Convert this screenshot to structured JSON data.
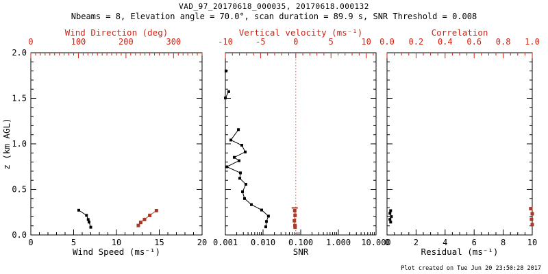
{
  "title": "VAD_97_20170618_000035, 20170618.000132",
  "subtitle": "Nbeams = 8, Elevation angle = 70.0°, scan duration = 89.9 s, SNR Threshold = 0.008",
  "footer": "Plot created on Tue Jun 20 23:50:28 2017",
  "colors": {
    "background": "#ffffff",
    "axis_black": "#000000",
    "axis_red": "#d41f10",
    "data_black": "#000000",
    "data_red": "#a93a28",
    "ref_line_red": "#dd4545"
  },
  "chart_data": [
    {
      "name": "panel-wind-speed-direction",
      "type": "scatter",
      "y_axis": {
        "label": "z (km AGL)",
        "lim": [
          0,
          2
        ],
        "ticks": [
          0,
          0.5,
          1,
          1.5,
          2
        ],
        "tick_labels": [
          "0.0",
          "0.5",
          "1.0",
          "1.5",
          "2.0"
        ],
        "minor_step": 0.1,
        "show_labels": true
      },
      "bottom_axis": {
        "label": "Wind Speed (ms⁻¹)",
        "scale": "linear",
        "lim": [
          0,
          20
        ],
        "ticks": [
          0,
          5,
          10,
          15,
          20
        ],
        "tick_labels": [
          "0",
          "5",
          "10",
          "15",
          "20"
        ],
        "minor_step": 1,
        "color": "black"
      },
      "top_axis": {
        "label": "Wind Direction (deg)",
        "scale": "linear",
        "lim": [
          0,
          360
        ],
        "ticks": [
          0,
          100,
          200,
          300
        ],
        "tick_labels": [
          "0",
          "100",
          "200",
          "300"
        ],
        "minor_step": 10,
        "color": "red"
      },
      "series": [
        {
          "name": "wind-speed",
          "axis": "bottom",
          "color": "black",
          "line": true,
          "points": [
            [
              5.6,
              0.272
            ],
            [
              6.5,
              0.215
            ],
            [
              6.7,
              0.17
            ],
            [
              6.8,
              0.141
            ],
            [
              7.0,
              0.085
            ]
          ]
        },
        {
          "name": "wind-direction",
          "axis": "top",
          "color": "red",
          "line": true,
          "points": [
            [
              226,
              0.104
            ],
            [
              231,
              0.138
            ],
            [
              239,
              0.17
            ],
            [
              250,
              0.215
            ],
            [
              264,
              0.267
            ]
          ]
        }
      ]
    },
    {
      "name": "panel-snr-vertical-velocity",
      "type": "scatter",
      "y_axis": {
        "label": "",
        "lim": [
          0,
          2
        ],
        "ticks": [
          0,
          0.5,
          1,
          1.5,
          2
        ],
        "tick_labels": [
          "0.0",
          "0.5",
          "1.0",
          "1.5",
          "2.0"
        ],
        "minor_step": 0.1,
        "show_labels": false
      },
      "bottom_axis": {
        "label": "SNR",
        "scale": "log",
        "lim": [
          0.001,
          10
        ],
        "ticks": [
          0.001,
          0.01,
          0.1,
          1,
          10
        ],
        "tick_labels": [
          "0.001",
          "0.010",
          "0.100",
          "1.000",
          "10.000"
        ],
        "color": "black"
      },
      "top_axis": {
        "label": "Vertical velocity (ms⁻¹)",
        "scale": "linear",
        "lim": [
          -10,
          11.4
        ],
        "ticks": [
          -10,
          -5,
          0,
          5,
          10
        ],
        "tick_labels": [
          "-10",
          "-5",
          "0",
          "5",
          "10"
        ],
        "minor_step": 1,
        "color": "red"
      },
      "ref_line": {
        "axis": "top",
        "value": 0,
        "style": "dotted"
      },
      "series": [
        {
          "name": "snr",
          "axis": "bottom",
          "color": "black",
          "line": true,
          "segments": [
            [
              [
                0.00104,
                1.8
              ]
            ],
            [
              [
                0.00123,
                1.573
              ],
              [
                0.001,
                1.504
              ]
            ],
            [
              [
                0.00222,
                1.156
              ],
              [
                0.0014,
                1.042
              ],
              [
                0.00273,
                0.985
              ],
              [
                0.00337,
                0.911
              ],
              [
                0.00172,
                0.852
              ],
              [
                0.00231,
                0.815
              ],
              [
                0.00109,
                0.748
              ],
              [
                0.00251,
                0.681
              ],
              [
                0.00241,
                0.622
              ],
              [
                0.00351,
                0.556
              ],
              [
                0.00285,
                0.474
              ],
              [
                0.00323,
                0.4
              ],
              [
                0.0049,
                0.333
              ],
              [
                0.0092,
                0.274
              ],
              [
                0.0139,
                0.207
              ],
              [
                0.0123,
                0.148
              ],
              [
                0.0118,
                0.089
              ]
            ]
          ]
        },
        {
          "name": "vertical-velocity",
          "axis": "top",
          "color": "red",
          "line": true,
          "cap_top": true,
          "points": [
            [
              -0.15,
              0.267
            ],
            [
              -0.1,
              0.215
            ],
            [
              -0.2,
              0.156
            ],
            [
              -0.12,
              0.104
            ],
            [
              -0.1,
              0.085
            ]
          ]
        }
      ]
    },
    {
      "name": "panel-residual-correlation",
      "type": "scatter",
      "y_axis": {
        "label": "",
        "lim": [
          0,
          2
        ],
        "ticks": [
          0,
          0.5,
          1,
          1.5,
          2
        ],
        "tick_labels": [
          "0.0",
          "0.5",
          "1.0",
          "1.5",
          "2.0"
        ],
        "minor_step": 0.1,
        "show_labels": false
      },
      "bottom_axis": {
        "label": "Residual (ms⁻¹)",
        "scale": "linear",
        "lim": [
          0,
          10
        ],
        "ticks": [
          0,
          2,
          4,
          6,
          8,
          10
        ],
        "tick_labels": [
          "0",
          "2",
          "4",
          "6",
          "8",
          "10"
        ],
        "minor_step": 0.5,
        "color": "black"
      },
      "top_axis": {
        "label": "Correlation",
        "scale": "linear",
        "lim": [
          0,
          1
        ],
        "ticks": [
          0,
          0.2,
          0.4,
          0.6,
          0.8,
          1
        ],
        "tick_labels": [
          "0.0",
          "0.2",
          "0.4",
          "0.6",
          "0.8",
          "1.0"
        ],
        "minor_step": 0.05,
        "color": "red"
      },
      "series": [
        {
          "name": "residual",
          "axis": "bottom",
          "color": "black",
          "line": true,
          "points": [
            [
              0.25,
              0.267
            ],
            [
              0.2,
              0.237
            ],
            [
              0.3,
              0.202
            ],
            [
              0.2,
              0.171
            ],
            [
              0.25,
              0.141
            ]
          ]
        },
        {
          "name": "correlation",
          "axis": "top",
          "color": "red",
          "line": false,
          "points": [
            [
              0.99,
              0.289
            ],
            [
              1.0,
              0.233
            ],
            [
              0.995,
              0.172
            ],
            [
              1.0,
              0.114
            ]
          ]
        }
      ]
    }
  ]
}
